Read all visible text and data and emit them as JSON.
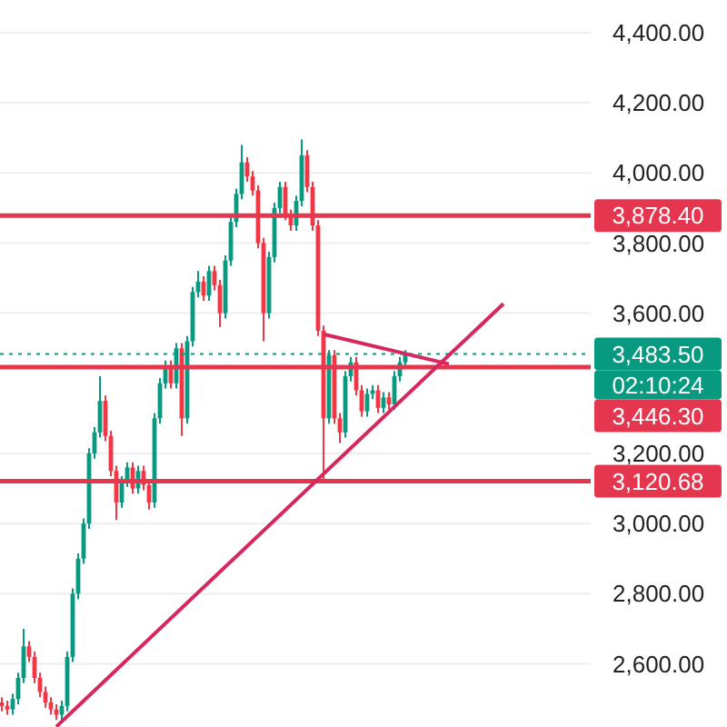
{
  "chart_data": {
    "type": "candlestick",
    "categories": [
      null,
      null,
      null,
      null,
      null,
      null,
      null,
      null,
      null,
      null,
      null,
      null,
      null,
      null,
      null,
      null,
      null,
      null,
      null,
      null,
      null,
      null,
      null,
      null,
      null,
      null,
      null,
      null,
      null,
      null,
      null,
      null,
      null,
      null,
      null,
      null,
      null,
      null,
      null,
      null,
      null,
      null,
      null,
      null,
      null,
      null,
      null,
      null,
      null,
      null,
      null,
      null,
      null,
      null,
      null,
      null,
      null,
      null,
      null,
      null,
      null,
      null,
      null,
      null,
      null,
      null,
      null,
      null,
      null,
      null,
      null,
      null,
      null,
      null,
      null,
      null,
      null,
      null,
      null,
      null,
      null,
      null,
      null,
      null,
      null,
      null,
      null,
      null,
      null,
      null,
      null,
      null,
      null
    ],
    "ohlc": [
      [
        2490,
        2505,
        2465,
        2480
      ],
      [
        2480,
        2495,
        2455,
        2470
      ],
      [
        2470,
        2515,
        2455,
        2500
      ],
      [
        2500,
        2575,
        2485,
        2560
      ],
      [
        2560,
        2700,
        2545,
        2650
      ],
      [
        2650,
        2665,
        2605,
        2620
      ],
      [
        2620,
        2635,
        2545,
        2560
      ],
      [
        2560,
        2575,
        2505,
        2520
      ],
      [
        2520,
        2535,
        2475,
        2490
      ],
      [
        2490,
        2505,
        2455,
        2470
      ],
      [
        2470,
        2485,
        2440,
        2455
      ],
      [
        2455,
        2495,
        2440,
        2480
      ],
      [
        2480,
        2635,
        2465,
        2620
      ],
      [
        2620,
        2815,
        2605,
        2800
      ],
      [
        2800,
        2915,
        2785,
        2900
      ],
      [
        2900,
        3015,
        2885,
        3000
      ],
      [
        3000,
        3215,
        2985,
        3200
      ],
      [
        3200,
        3275,
        3185,
        3260
      ],
      [
        3260,
        3420,
        3245,
        3350
      ],
      [
        3350,
        3365,
        3235,
        3250
      ],
      [
        3250,
        3265,
        3135,
        3150
      ],
      [
        3150,
        3165,
        3010,
        3060
      ],
      [
        3060,
        3135,
        3045,
        3120
      ],
      [
        3120,
        3175,
        3105,
        3160
      ],
      [
        3160,
        3175,
        3085,
        3100
      ],
      [
        3100,
        3165,
        3085,
        3150
      ],
      [
        3150,
        3165,
        3095,
        3110
      ],
      [
        3110,
        3125,
        3040,
        3060
      ],
      [
        3060,
        3315,
        3045,
        3300
      ],
      [
        3300,
        3415,
        3285,
        3400
      ],
      [
        3400,
        3465,
        3385,
        3450
      ],
      [
        3450,
        3465,
        3385,
        3400
      ],
      [
        3400,
        3515,
        3385,
        3500
      ],
      [
        3500,
        3515,
        3250,
        3300
      ],
      [
        3300,
        3535,
        3285,
        3520
      ],
      [
        3520,
        3675,
        3505,
        3660
      ],
      [
        3660,
        3720,
        3645,
        3690
      ],
      [
        3690,
        3705,
        3635,
        3650
      ],
      [
        3650,
        3735,
        3635,
        3720
      ],
      [
        3720,
        3735,
        3665,
        3680
      ],
      [
        3680,
        3695,
        3560,
        3600
      ],
      [
        3600,
        3765,
        3585,
        3750
      ],
      [
        3750,
        3875,
        3735,
        3860
      ],
      [
        3860,
        3955,
        3845,
        3940
      ],
      [
        3940,
        4080,
        3925,
        4030
      ],
      [
        4030,
        4045,
        3975,
        3990
      ],
      [
        3990,
        4005,
        3935,
        3950
      ],
      [
        3950,
        3965,
        3785,
        3800
      ],
      [
        3800,
        3815,
        3520,
        3600
      ],
      [
        3600,
        3775,
        3585,
        3760
      ],
      [
        3760,
        3915,
        3745,
        3900
      ],
      [
        3900,
        3975,
        3885,
        3960
      ],
      [
        3960,
        3975,
        3865,
        3880
      ],
      [
        3880,
        3895,
        3835,
        3850
      ],
      [
        3850,
        3935,
        3835,
        3920
      ],
      [
        3920,
        4095,
        3905,
        4050
      ],
      [
        4050,
        4065,
        3945,
        3960
      ],
      [
        3960,
        3975,
        3835,
        3850
      ],
      [
        3850,
        3865,
        3535,
        3550
      ],
      [
        3550,
        3565,
        3120,
        3300
      ],
      [
        3300,
        3495,
        3285,
        3480
      ],
      [
        3480,
        3495,
        3285,
        3300
      ],
      [
        3300,
        3315,
        3230,
        3260
      ],
      [
        3260,
        3435,
        3245,
        3420
      ],
      [
        3420,
        3475,
        3405,
        3460
      ],
      [
        3460,
        3475,
        3365,
        3380
      ],
      [
        3380,
        3395,
        3305,
        3320
      ],
      [
        3320,
        3385,
        3305,
        3370
      ],
      [
        3370,
        3395,
        3355,
        3380
      ],
      [
        3380,
        3395,
        3315,
        3330
      ],
      [
        3330,
        3375,
        3315,
        3360
      ],
      [
        3360,
        3375,
        3325,
        3340
      ],
      [
        3340,
        3435,
        3325,
        3420
      ],
      [
        3420,
        3475,
        3405,
        3460
      ],
      [
        3460,
        3495,
        3445,
        3483.5
      ],
      null,
      null,
      null,
      null,
      null,
      null,
      null,
      null,
      null,
      null,
      null,
      null,
      null,
      null,
      null,
      null,
      null,
      null
    ],
    "series": [
      {
        "type": "line",
        "color": "#d6285c",
        "values": [
          null,
          null,
          null,
          null,
          null,
          null,
          null,
          null,
          null,
          null,
          2421,
          null,
          null,
          null,
          null,
          null,
          null,
          null,
          null,
          null,
          null,
          null,
          null,
          null,
          null,
          null,
          null,
          null,
          null,
          null,
          null,
          null,
          null,
          null,
          null,
          null,
          null,
          null,
          null,
          null,
          null,
          null,
          null,
          null,
          null,
          null,
          null,
          null,
          null,
          null,
          null,
          null,
          null,
          null,
          null,
          null,
          null,
          null,
          null,
          null,
          null,
          null,
          null,
          null,
          null,
          null,
          null,
          null,
          null,
          null,
          null,
          null,
          null,
          null,
          null,
          null,
          null,
          null,
          null,
          null,
          null,
          null,
          null,
          null,
          null,
          null,
          null,
          null,
          null,
          null,
          null,
          null,
          3627
        ]
      },
      {
        "type": "line",
        "color": "#d6285c",
        "values": [
          null,
          null,
          null,
          null,
          null,
          null,
          null,
          null,
          null,
          null,
          null,
          null,
          null,
          null,
          null,
          null,
          null,
          null,
          null,
          null,
          null,
          null,
          null,
          null,
          null,
          null,
          null,
          null,
          null,
          null,
          null,
          null,
          null,
          null,
          null,
          null,
          null,
          null,
          null,
          null,
          null,
          null,
          null,
          null,
          null,
          null,
          null,
          null,
          null,
          null,
          null,
          null,
          null,
          null,
          null,
          null,
          null,
          null,
          null,
          3540,
          null,
          null,
          null,
          null,
          null,
          null,
          null,
          null,
          null,
          null,
          null,
          null,
          null,
          null,
          null,
          null,
          null,
          null,
          null,
          null,
          null,
          null,
          3455,
          null,
          null,
          null,
          null,
          null,
          null,
          null,
          null,
          null,
          null
        ]
      }
    ],
    "ylim": [
      2420,
      4493
    ],
    "yticks": [
      {
        "value": 2600,
        "label": "2,600.00"
      },
      {
        "value": 2800,
        "label": "2,800.00"
      },
      {
        "value": 3000,
        "label": "3,000.00"
      },
      {
        "value": 3200,
        "label": "3,200.00"
      },
      {
        "value": 3600,
        "label": "3,600.00"
      },
      {
        "value": 3800,
        "label": "3,800.00"
      },
      {
        "value": 4000,
        "label": "4,000.00"
      },
      {
        "value": 4200,
        "label": "4,200.00"
      },
      {
        "value": 4400,
        "label": "4,400.00"
      }
    ],
    "ref_lines": [
      {
        "axis": "y",
        "value": 3878.4,
        "label": "3,878.40",
        "color": "#e5364f"
      },
      {
        "axis": "y",
        "value": 3446.3,
        "label": "3,446.30",
        "color": "#e5364f"
      },
      {
        "axis": "y",
        "value": 3120.68,
        "label": "3,120.68",
        "color": "#e5364f"
      },
      {
        "axis": "y",
        "value": 3483.5,
        "label": "3,483.50",
        "color": "#089981",
        "line_style": "dotted"
      }
    ],
    "annotations": [
      "02:10:24"
    ],
    "grid": "y",
    "tick_labels": "y"
  }
}
